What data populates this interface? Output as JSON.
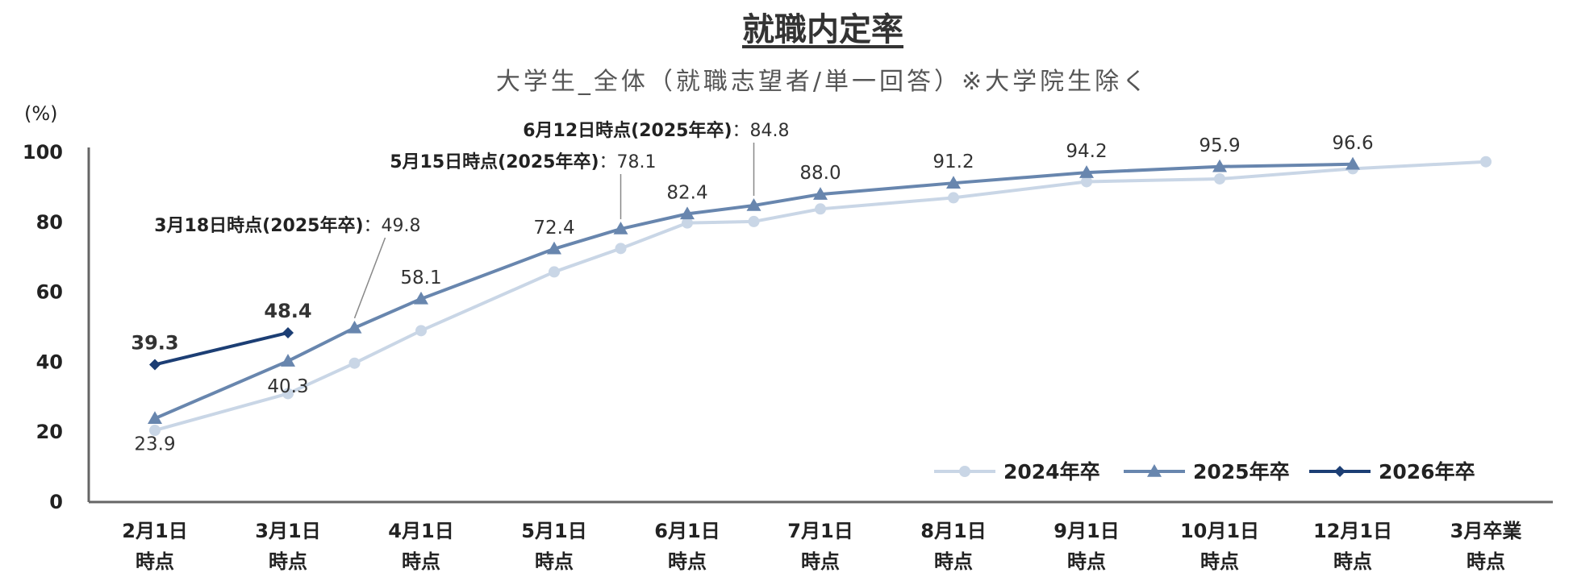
{
  "chart_data": {
    "type": "line",
    "title": "就職内定率",
    "subtitle": "大学生_全体（就職志望者/単一回答）※大学院生除く",
    "ylabel": "(%)",
    "ylim": [
      0,
      100
    ],
    "yticks": [
      0,
      20,
      40,
      60,
      80,
      100
    ],
    "categories": [
      [
        "2月1日",
        "時点"
      ],
      [
        "3月1日",
        "時点"
      ],
      [
        "4月1日",
        "時点"
      ],
      [
        "5月1日",
        "時点"
      ],
      [
        "6月1日",
        "時点"
      ],
      [
        "7月1日",
        "時点"
      ],
      [
        "8月1日",
        "時点"
      ],
      [
        "9月1日",
        "時点"
      ],
      [
        "10月1日",
        "時点"
      ],
      [
        "12月1日",
        "時点"
      ],
      [
        "3月卒業",
        "時点"
      ]
    ],
    "legend_position": "bottom-right",
    "series": [
      {
        "name": "2024年卒",
        "color": "#c9d6e6",
        "marker": "circle",
        "points": [
          {
            "x": 0,
            "y": 20.5
          },
          {
            "x": 1,
            "y": 31.0
          },
          {
            "x": 1.5,
            "y": 39.7
          },
          {
            "x": 2,
            "y": 49.0
          },
          {
            "x": 3,
            "y": 65.8
          },
          {
            "x": 3.5,
            "y": 72.5
          },
          {
            "x": 4,
            "y": 79.8
          },
          {
            "x": 4.5,
            "y": 80.2
          },
          {
            "x": 5,
            "y": 83.8
          },
          {
            "x": 6,
            "y": 87.0
          },
          {
            "x": 7,
            "y": 91.6
          },
          {
            "x": 8,
            "y": 92.4
          },
          {
            "x": 9,
            "y": 95.3
          },
          {
            "x": 10,
            "y": 97.3
          }
        ]
      },
      {
        "name": "2025年卒",
        "color": "#6886ae",
        "marker": "triangle",
        "points": [
          {
            "x": 0,
            "y": 23.9
          },
          {
            "x": 1,
            "y": 40.3
          },
          {
            "x": 1.5,
            "y": 49.8
          },
          {
            "x": 2,
            "y": 58.1
          },
          {
            "x": 3,
            "y": 72.4
          },
          {
            "x": 3.5,
            "y": 78.1
          },
          {
            "x": 4,
            "y": 82.4
          },
          {
            "x": 4.5,
            "y": 84.8
          },
          {
            "x": 5,
            "y": 88.0
          },
          {
            "x": 6,
            "y": 91.2
          },
          {
            "x": 7,
            "y": 94.2
          },
          {
            "x": 8,
            "y": 95.9
          },
          {
            "x": 9,
            "y": 96.6
          }
        ]
      },
      {
        "name": "2026年卒",
        "color": "#1c3e74",
        "marker": "diamond",
        "points": [
          {
            "x": 0,
            "y": 39.3
          },
          {
            "x": 1,
            "y": 48.4
          }
        ]
      }
    ],
    "data_labels": [
      {
        "series": "2025年卒",
        "x": 0,
        "y": 23.9,
        "text": "23.9",
        "pos": "below"
      },
      {
        "series": "2025年卒",
        "x": 1,
        "y": 40.3,
        "text": "40.3",
        "pos": "below"
      },
      {
        "series": "2025年卒",
        "x": 2,
        "y": 58.1,
        "text": "58.1",
        "pos": "above"
      },
      {
        "series": "2025年卒",
        "x": 3,
        "y": 72.4,
        "text": "72.4",
        "pos": "above"
      },
      {
        "series": "2025年卒",
        "x": 4,
        "y": 82.4,
        "text": "82.4",
        "pos": "above"
      },
      {
        "series": "2025年卒",
        "x": 5,
        "y": 88.0,
        "text": "88.0",
        "pos": "above"
      },
      {
        "series": "2025年卒",
        "x": 6,
        "y": 91.2,
        "text": "91.2",
        "pos": "above"
      },
      {
        "series": "2025年卒",
        "x": 7,
        "y": 94.2,
        "text": "94.2",
        "pos": "above"
      },
      {
        "series": "2025年卒",
        "x": 8,
        "y": 95.9,
        "text": "95.9",
        "pos": "above"
      },
      {
        "series": "2025年卒",
        "x": 9,
        "y": 96.6,
        "text": "96.6",
        "pos": "above"
      },
      {
        "series": "2026年卒",
        "x": 0,
        "y": 39.3,
        "text": "39.3",
        "pos": "above",
        "bold": true
      },
      {
        "series": "2026年卒",
        "x": 1,
        "y": 48.4,
        "text": "48.4",
        "pos": "above",
        "bold": true
      }
    ],
    "annotations": [
      {
        "label": "3月18日時点(2025年卒)",
        "value": "：49.8",
        "x": 1.5,
        "y": 49.8,
        "row": 3
      },
      {
        "label": "5月15日時点(2025年卒)",
        "value": "：78.1",
        "x": 3.5,
        "y": 78.1,
        "row": 2
      },
      {
        "label": "6月12日時点(2025年卒)",
        "value": "：84.8",
        "x": 4.5,
        "y": 84.8,
        "row": 1
      }
    ]
  }
}
